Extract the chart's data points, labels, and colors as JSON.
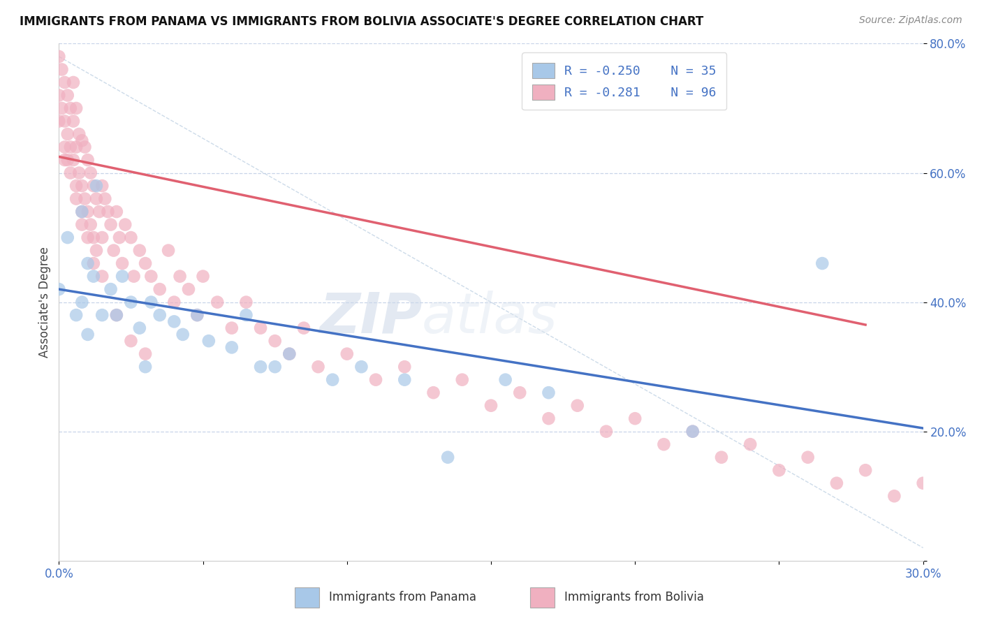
{
  "title": "IMMIGRANTS FROM PANAMA VS IMMIGRANTS FROM BOLIVIA ASSOCIATE'S DEGREE CORRELATION CHART",
  "source": "Source: ZipAtlas.com",
  "ylabel_label": "Associate's Degree",
  "xlim": [
    0.0,
    0.3
  ],
  "ylim": [
    0.0,
    0.8
  ],
  "watermark_zip": "ZIP",
  "watermark_atlas": "atlas",
  "legend_text1": "R = -0.250    N = 35",
  "legend_text2": "R = -0.281    N = 96",
  "legend_label1": "Immigrants from Panama",
  "legend_label2": "Immigrants from Bolivia",
  "color_panama": "#a8c8e8",
  "color_bolivia": "#f0b0c0",
  "line_color_panama": "#4472c4",
  "line_color_bolivia": "#e06070",
  "background_color": "#ffffff",
  "grid_color": "#c8d4e8",
  "pan_line_x": [
    0.0,
    0.3
  ],
  "pan_line_y": [
    0.42,
    0.205
  ],
  "bol_line_x": [
    0.0,
    0.28
  ],
  "bol_line_y": [
    0.625,
    0.365
  ],
  "ref_line_x": [
    0.0,
    0.3
  ],
  "ref_line_y": [
    0.78,
    0.02
  ],
  "panama_x": [
    0.0,
    0.003,
    0.006,
    0.008,
    0.008,
    0.01,
    0.012,
    0.013,
    0.015,
    0.018,
    0.02,
    0.022,
    0.025,
    0.028,
    0.032,
    0.035,
    0.04,
    0.043,
    0.048,
    0.052,
    0.06,
    0.065,
    0.07,
    0.075,
    0.08,
    0.095,
    0.105,
    0.12,
    0.135,
    0.155,
    0.17,
    0.22,
    0.265,
    0.01,
    0.03
  ],
  "panama_y": [
    0.42,
    0.5,
    0.38,
    0.54,
    0.4,
    0.46,
    0.44,
    0.58,
    0.38,
    0.42,
    0.38,
    0.44,
    0.4,
    0.36,
    0.4,
    0.38,
    0.37,
    0.35,
    0.38,
    0.34,
    0.33,
    0.38,
    0.3,
    0.3,
    0.32,
    0.28,
    0.3,
    0.28,
    0.16,
    0.28,
    0.26,
    0.2,
    0.46,
    0.35,
    0.3
  ],
  "bolivia_x": [
    0.0,
    0.0,
    0.0,
    0.001,
    0.001,
    0.002,
    0.002,
    0.002,
    0.003,
    0.003,
    0.003,
    0.004,
    0.004,
    0.005,
    0.005,
    0.005,
    0.006,
    0.006,
    0.006,
    0.007,
    0.007,
    0.008,
    0.008,
    0.008,
    0.009,
    0.009,
    0.01,
    0.01,
    0.011,
    0.011,
    0.012,
    0.012,
    0.013,
    0.013,
    0.014,
    0.015,
    0.015,
    0.016,
    0.017,
    0.018,
    0.019,
    0.02,
    0.021,
    0.022,
    0.023,
    0.025,
    0.026,
    0.028,
    0.03,
    0.032,
    0.035,
    0.038,
    0.04,
    0.042,
    0.045,
    0.048,
    0.05,
    0.055,
    0.06,
    0.065,
    0.07,
    0.075,
    0.08,
    0.085,
    0.09,
    0.1,
    0.11,
    0.12,
    0.13,
    0.14,
    0.15,
    0.16,
    0.17,
    0.18,
    0.19,
    0.2,
    0.21,
    0.22,
    0.23,
    0.24,
    0.25,
    0.26,
    0.27,
    0.28,
    0.29,
    0.3,
    0.002,
    0.004,
    0.006,
    0.008,
    0.01,
    0.012,
    0.015,
    0.02,
    0.025,
    0.03
  ],
  "bolivia_y": [
    0.78,
    0.72,
    0.68,
    0.76,
    0.7,
    0.74,
    0.68,
    0.64,
    0.72,
    0.66,
    0.62,
    0.7,
    0.64,
    0.74,
    0.68,
    0.62,
    0.7,
    0.64,
    0.58,
    0.66,
    0.6,
    0.65,
    0.58,
    0.54,
    0.64,
    0.56,
    0.62,
    0.54,
    0.6,
    0.52,
    0.58,
    0.5,
    0.56,
    0.48,
    0.54,
    0.58,
    0.5,
    0.56,
    0.54,
    0.52,
    0.48,
    0.54,
    0.5,
    0.46,
    0.52,
    0.5,
    0.44,
    0.48,
    0.46,
    0.44,
    0.42,
    0.48,
    0.4,
    0.44,
    0.42,
    0.38,
    0.44,
    0.4,
    0.36,
    0.4,
    0.36,
    0.34,
    0.32,
    0.36,
    0.3,
    0.32,
    0.28,
    0.3,
    0.26,
    0.28,
    0.24,
    0.26,
    0.22,
    0.24,
    0.2,
    0.22,
    0.18,
    0.2,
    0.16,
    0.18,
    0.14,
    0.16,
    0.12,
    0.14,
    0.1,
    0.12,
    0.62,
    0.6,
    0.56,
    0.52,
    0.5,
    0.46,
    0.44,
    0.38,
    0.34,
    0.32
  ]
}
